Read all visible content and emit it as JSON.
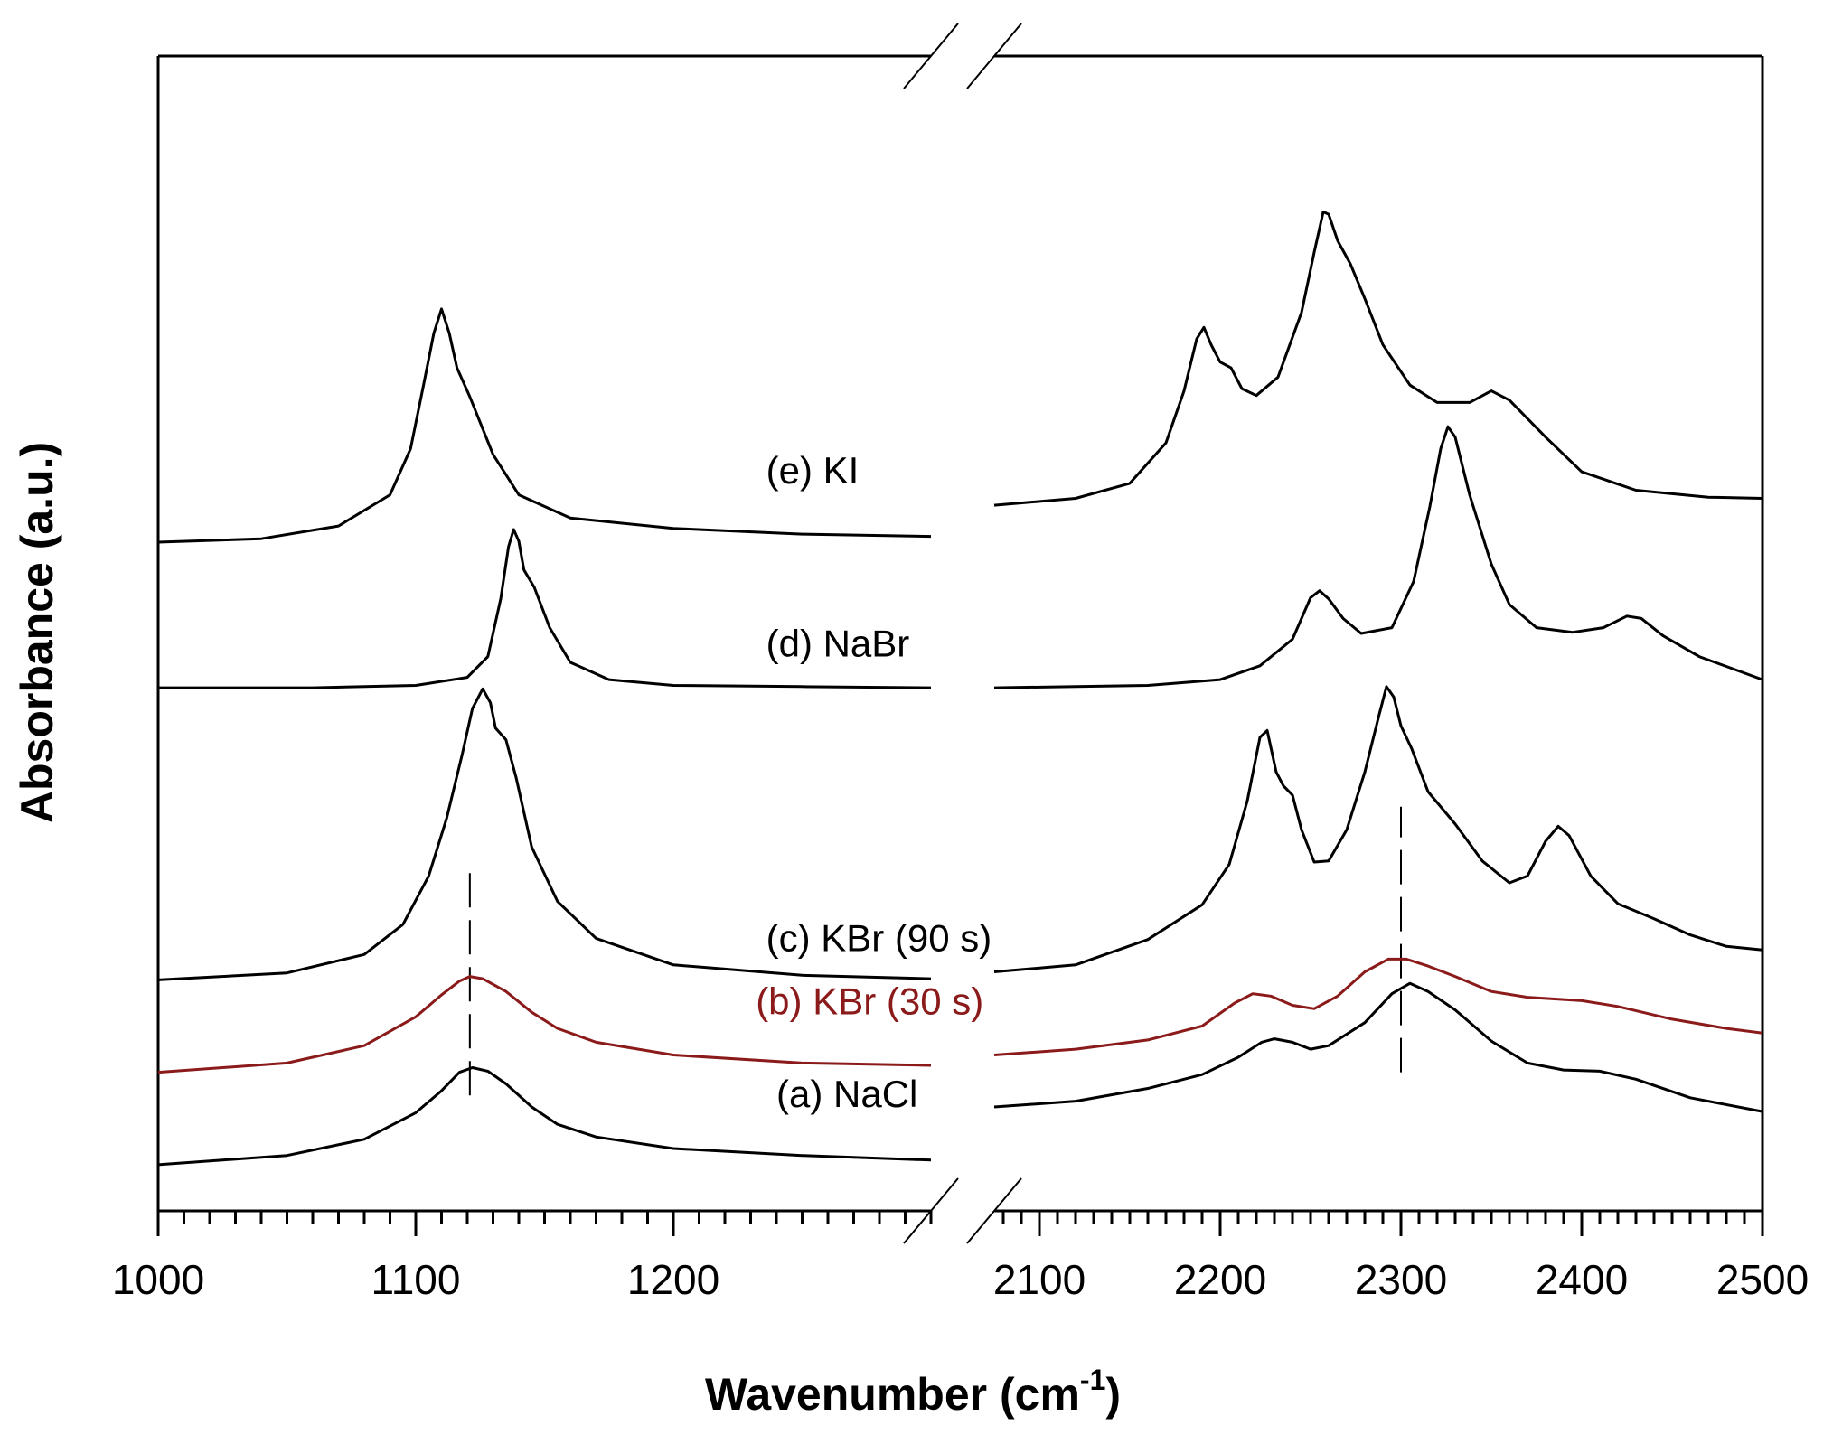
{
  "chart_data": {
    "type": "line",
    "title": "",
    "xlabel": "Wavenumber (cm",
    "xlabel_sup": "-1",
    "xlabel_end": ")",
    "ylabel": "Absorbance (a.u.)",
    "x_segments": [
      {
        "range": [
          1000,
          1300
        ],
        "ticks": [
          1000,
          1100,
          1200
        ],
        "tick_labels": [
          "1000",
          "1100",
          "1200"
        ]
      },
      {
        "range": [
          2075,
          2500
        ],
        "ticks": [
          2100,
          2200,
          2300,
          2400,
          2500
        ],
        "tick_labels": [
          "2100",
          "2200",
          "2300",
          "2400",
          "2500"
        ]
      }
    ],
    "axis_break": true,
    "ylim": [
      0,
      1
    ],
    "y_ticks": false,
    "grid": false,
    "reference_lines": [
      {
        "x": 1121,
        "y": [
          0.1,
          0.3
        ]
      },
      {
        "x": 2300,
        "y": [
          0.12,
          0.35
        ]
      }
    ],
    "series": [
      {
        "name": "(a) NaCl",
        "color": "#000000",
        "label_at": [
          1240,
          0.09
        ],
        "label_color": "#000000",
        "segments": [
          [
            [
              1000,
              0.04
            ],
            [
              1050,
              0.048
            ],
            [
              1080,
              0.062
            ],
            [
              1100,
              0.085
            ],
            [
              1110,
              0.104
            ],
            [
              1117,
              0.12
            ],
            [
              1122,
              0.124
            ],
            [
              1128,
              0.121
            ],
            [
              1135,
              0.11
            ],
            [
              1145,
              0.09
            ],
            [
              1155,
              0.075
            ],
            [
              1170,
              0.064
            ],
            [
              1200,
              0.054
            ],
            [
              1250,
              0.048
            ],
            [
              1300,
              0.044
            ]
          ],
          [
            [
              2075,
              0.09
            ],
            [
              2120,
              0.095
            ],
            [
              2160,
              0.106
            ],
            [
              2190,
              0.118
            ],
            [
              2210,
              0.133
            ],
            [
              2223,
              0.146
            ],
            [
              2230,
              0.149
            ],
            [
              2240,
              0.146
            ],
            [
              2250,
              0.14
            ],
            [
              2260,
              0.143
            ],
            [
              2280,
              0.163
            ],
            [
              2295,
              0.188
            ],
            [
              2305,
              0.197
            ],
            [
              2315,
              0.19
            ],
            [
              2330,
              0.174
            ],
            [
              2350,
              0.147
            ],
            [
              2370,
              0.128
            ],
            [
              2390,
              0.122
            ],
            [
              2410,
              0.121
            ],
            [
              2430,
              0.114
            ],
            [
              2460,
              0.098
            ],
            [
              2500,
              0.086
            ]
          ]
        ]
      },
      {
        "name": "(b) KBr (30 s)",
        "color": "#8b1a1a",
        "label_at": [
          1232,
          0.17
        ],
        "label_color": "#8b1a1a",
        "segments": [
          [
            [
              1000,
              0.12
            ],
            [
              1050,
              0.128
            ],
            [
              1080,
              0.143
            ],
            [
              1100,
              0.168
            ],
            [
              1110,
              0.187
            ],
            [
              1117,
              0.199
            ],
            [
              1121,
              0.203
            ],
            [
              1126,
              0.201
            ],
            [
              1135,
              0.19
            ],
            [
              1145,
              0.172
            ],
            [
              1155,
              0.158
            ],
            [
              1170,
              0.146
            ],
            [
              1200,
              0.135
            ],
            [
              1250,
              0.128
            ],
            [
              1300,
              0.126
            ]
          ],
          [
            [
              2075,
              0.135
            ],
            [
              2120,
              0.14
            ],
            [
              2160,
              0.148
            ],
            [
              2190,
              0.16
            ],
            [
              2208,
              0.18
            ],
            [
              2218,
              0.188
            ],
            [
              2228,
              0.186
            ],
            [
              2240,
              0.178
            ],
            [
              2252,
              0.175
            ],
            [
              2265,
              0.186
            ],
            [
              2280,
              0.207
            ],
            [
              2293,
              0.218
            ],
            [
              2303,
              0.218
            ],
            [
              2315,
              0.212
            ],
            [
              2330,
              0.203
            ],
            [
              2350,
              0.19
            ],
            [
              2370,
              0.185
            ],
            [
              2400,
              0.182
            ],
            [
              2420,
              0.177
            ],
            [
              2450,
              0.166
            ],
            [
              2480,
              0.158
            ],
            [
              2500,
              0.154
            ]
          ]
        ]
      },
      {
        "name": "(c) KBr (90 s)",
        "color": "#000000",
        "label_at": [
          1236,
          0.225
        ],
        "label_color": "#000000",
        "segments": [
          [
            [
              1000,
              0.2
            ],
            [
              1050,
              0.206
            ],
            [
              1080,
              0.222
            ],
            [
              1095,
              0.248
            ],
            [
              1105,
              0.29
            ],
            [
              1112,
              0.34
            ],
            [
              1118,
              0.395
            ],
            [
              1122,
              0.435
            ],
            [
              1126,
              0.452
            ],
            [
              1129,
              0.44
            ],
            [
              1131,
              0.418
            ],
            [
              1135,
              0.408
            ],
            [
              1139,
              0.375
            ],
            [
              1145,
              0.315
            ],
            [
              1155,
              0.268
            ],
            [
              1170,
              0.236
            ],
            [
              1200,
              0.213
            ],
            [
              1250,
              0.204
            ],
            [
              1300,
              0.201
            ]
          ],
          [
            [
              2075,
              0.207
            ],
            [
              2120,
              0.213
            ],
            [
              2160,
              0.235
            ],
            [
              2190,
              0.265
            ],
            [
              2205,
              0.3
            ],
            [
              2215,
              0.355
            ],
            [
              2222,
              0.41
            ],
            [
              2226,
              0.416
            ],
            [
              2231,
              0.38
            ],
            [
              2235,
              0.368
            ],
            [
              2240,
              0.36
            ],
            [
              2245,
              0.33
            ],
            [
              2252,
              0.302
            ],
            [
              2260,
              0.303
            ],
            [
              2270,
              0.33
            ],
            [
              2280,
              0.38
            ],
            [
              2288,
              0.43
            ],
            [
              2292,
              0.454
            ],
            [
              2296,
              0.445
            ],
            [
              2300,
              0.42
            ],
            [
              2306,
              0.4
            ],
            [
              2315,
              0.363
            ],
            [
              2330,
              0.335
            ],
            [
              2345,
              0.303
            ],
            [
              2360,
              0.284
            ],
            [
              2370,
              0.29
            ],
            [
              2380,
              0.32
            ],
            [
              2387,
              0.333
            ],
            [
              2393,
              0.325
            ],
            [
              2405,
              0.29
            ],
            [
              2420,
              0.266
            ],
            [
              2440,
              0.253
            ],
            [
              2460,
              0.239
            ],
            [
              2480,
              0.229
            ],
            [
              2500,
              0.226
            ]
          ]
        ]
      },
      {
        "name": "(d) NaBr",
        "color": "#000000",
        "label_at": [
          1236,
          0.48
        ],
        "label_color": "#000000",
        "segments": [
          [
            [
              1000,
              0.453
            ],
            [
              1060,
              0.453
            ],
            [
              1100,
              0.455
            ],
            [
              1120,
              0.462
            ],
            [
              1128,
              0.48
            ],
            [
              1133,
              0.53
            ],
            [
              1136,
              0.575
            ],
            [
              1138,
              0.59
            ],
            [
              1140,
              0.58
            ],
            [
              1142,
              0.555
            ],
            [
              1146,
              0.54
            ],
            [
              1152,
              0.505
            ],
            [
              1160,
              0.475
            ],
            [
              1175,
              0.46
            ],
            [
              1200,
              0.455
            ],
            [
              1250,
              0.454
            ],
            [
              1300,
              0.453
            ]
          ],
          [
            [
              2075,
              0.453
            ],
            [
              2160,
              0.455
            ],
            [
              2200,
              0.46
            ],
            [
              2222,
              0.472
            ],
            [
              2240,
              0.495
            ],
            [
              2250,
              0.531
            ],
            [
              2255,
              0.537
            ],
            [
              2260,
              0.53
            ],
            [
              2268,
              0.513
            ],
            [
              2278,
              0.5
            ],
            [
              2295,
              0.505
            ],
            [
              2307,
              0.545
            ],
            [
              2316,
              0.61
            ],
            [
              2322,
              0.66
            ],
            [
              2326,
              0.679
            ],
            [
              2330,
              0.67
            ],
            [
              2338,
              0.62
            ],
            [
              2350,
              0.56
            ],
            [
              2360,
              0.525
            ],
            [
              2375,
              0.505
            ],
            [
              2395,
              0.501
            ],
            [
              2412,
              0.505
            ],
            [
              2425,
              0.515
            ],
            [
              2433,
              0.513
            ],
            [
              2445,
              0.498
            ],
            [
              2465,
              0.48
            ],
            [
              2500,
              0.46
            ]
          ]
        ]
      },
      {
        "name": "(e) KI",
        "color": "#000000",
        "label_at": [
          1236,
          0.63
        ],
        "label_color": "#000000",
        "segments": [
          [
            [
              1000,
              0.579
            ],
            [
              1040,
              0.582
            ],
            [
              1070,
              0.593
            ],
            [
              1090,
              0.62
            ],
            [
              1098,
              0.66
            ],
            [
              1103,
              0.715
            ],
            [
              1107,
              0.76
            ],
            [
              1110,
              0.781
            ],
            [
              1113,
              0.76
            ],
            [
              1116,
              0.73
            ],
            [
              1121,
              0.705
            ],
            [
              1130,
              0.655
            ],
            [
              1140,
              0.62
            ],
            [
              1160,
              0.6
            ],
            [
              1200,
              0.591
            ],
            [
              1250,
              0.586
            ],
            [
              1300,
              0.584
            ]
          ],
          [
            [
              2075,
              0.611
            ],
            [
              2120,
              0.617
            ],
            [
              2150,
              0.63
            ],
            [
              2170,
              0.665
            ],
            [
              2180,
              0.71
            ],
            [
              2187,
              0.755
            ],
            [
              2191,
              0.765
            ],
            [
              2195,
              0.75
            ],
            [
              2200,
              0.735
            ],
            [
              2206,
              0.73
            ],
            [
              2212,
              0.712
            ],
            [
              2220,
              0.706
            ],
            [
              2232,
              0.722
            ],
            [
              2245,
              0.778
            ],
            [
              2252,
              0.83
            ],
            [
              2257,
              0.865
            ],
            [
              2260,
              0.863
            ],
            [
              2265,
              0.84
            ],
            [
              2272,
              0.82
            ],
            [
              2280,
              0.79
            ],
            [
              2290,
              0.75
            ],
            [
              2305,
              0.715
            ],
            [
              2320,
              0.7
            ],
            [
              2338,
              0.7
            ],
            [
              2350,
              0.71
            ],
            [
              2360,
              0.702
            ],
            [
              2380,
              0.67
            ],
            [
              2400,
              0.64
            ],
            [
              2430,
              0.624
            ],
            [
              2470,
              0.618
            ],
            [
              2500,
              0.617
            ]
          ]
        ]
      }
    ]
  }
}
